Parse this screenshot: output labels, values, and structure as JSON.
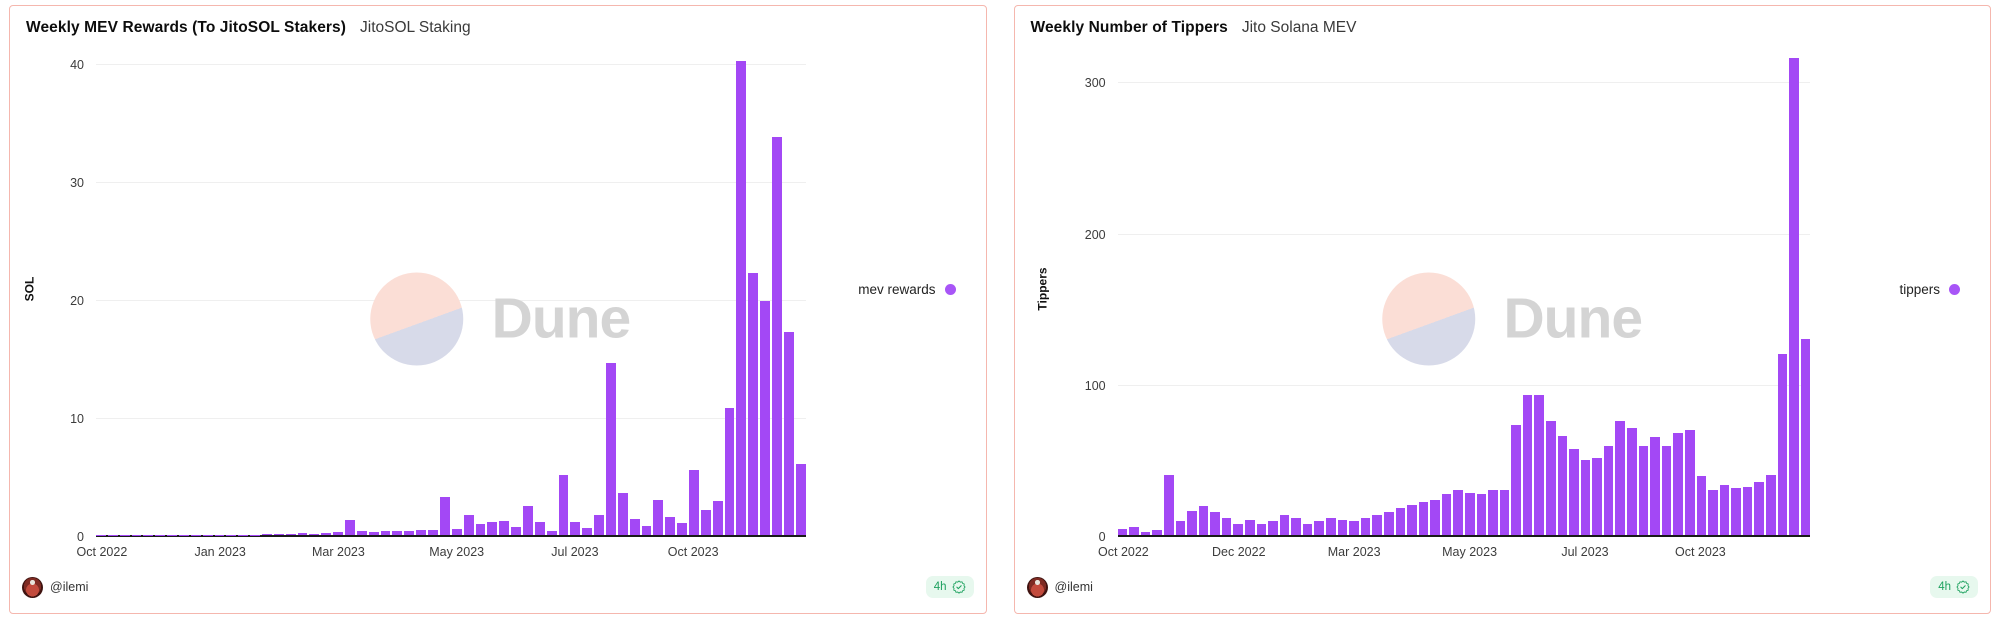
{
  "chart_data": [
    {
      "type": "bar",
      "title": "Weekly MEV Rewards (To JitoSOL Stakers)",
      "subtitle": "JitoSOL Staking",
      "ylabel": "SOL",
      "yticks": [
        0,
        10,
        20,
        30,
        40
      ],
      "ylim": [
        0,
        42
      ],
      "grid": "horizontal",
      "legend_position": "right",
      "xtick_labels": [
        "Oct 2022",
        "Jan 2023",
        "Mar 2023",
        "May 2023",
        "Jul 2023",
        "Oct 2023"
      ],
      "xtick_indices": [
        0,
        10,
        20,
        30,
        40,
        50
      ],
      "series": [
        {
          "name": "mev rewards",
          "values": [
            0.02,
            0.02,
            0.02,
            0.02,
            0.02,
            0.02,
            0.02,
            0.02,
            0.02,
            0.02,
            0.02,
            0.02,
            0.02,
            0.03,
            0.08,
            0.1,
            0.12,
            0.15,
            0.1,
            0.2,
            0.25,
            1.3,
            0.3,
            0.25,
            0.35,
            0.3,
            0.3,
            0.45,
            0.4,
            3.2,
            0.5,
            1.7,
            0.9,
            1.1,
            1.2,
            0.7,
            2.5,
            1.1,
            0.3,
            5.1,
            1.1,
            0.6,
            1.7,
            14.6,
            3.6,
            1.4,
            0.8,
            3,
            1.5,
            1,
            5.5,
            2.1,
            2.9,
            10.8,
            40.3,
            22.3,
            19.9,
            33.8,
            17.3,
            6
          ]
        }
      ]
    },
    {
      "type": "bar",
      "title": "Weekly Number of Tippers",
      "subtitle": "Jito Solana MEV",
      "ylabel": "Tippers",
      "yticks": [
        0,
        100,
        200,
        300
      ],
      "ylim": [
        0,
        328
      ],
      "grid": "horizontal",
      "legend_position": "right",
      "xtick_labels": [
        "Oct 2022",
        "Dec 2022",
        "Mar 2023",
        "May 2023",
        "Jul 2023",
        "Oct 2023"
      ],
      "xtick_indices": [
        0,
        10,
        20,
        30,
        40,
        50
      ],
      "series": [
        {
          "name": "tippers",
          "values": [
            4,
            5,
            2,
            3,
            40,
            9,
            16,
            19,
            15,
            11,
            7,
            10,
            7,
            9,
            13,
            11,
            7,
            9,
            11,
            10,
            9,
            11,
            13,
            15,
            18,
            20,
            22,
            23,
            27,
            30,
            28,
            27,
            30,
            30,
            73,
            93,
            93,
            76,
            66,
            57,
            50,
            51,
            59,
            76,
            71,
            59,
            65,
            59,
            68,
            70,
            39,
            30,
            33,
            31,
            32,
            35,
            40,
            120,
            317,
            130
          ]
        }
      ]
    }
  ],
  "cards": [
    {
      "author": "@ilemi",
      "badge_label": "4h",
      "watermark_text": "Dune"
    },
    {
      "author": "@ilemi",
      "badge_label": "4h",
      "watermark_text": "Dune"
    }
  ],
  "colors": {
    "bar": "#a348f5",
    "legend_dot": "#a855f7",
    "card_border": "#f5b7ae",
    "gridline": "#efefef",
    "axis_line": "#1a1a1a",
    "badge_text": "#1ea15f",
    "badge_bg": "#e7f8ee",
    "watermark_pink": "#fbded6",
    "watermark_lavender": "#d7dae9",
    "watermark_text": "#d4d4d4"
  }
}
